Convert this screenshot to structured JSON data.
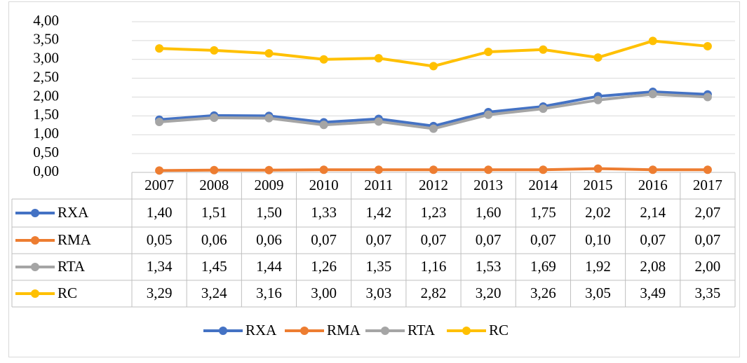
{
  "chart_data": {
    "type": "line",
    "categories": [
      "2007",
      "2008",
      "2009",
      "2010",
      "2011",
      "2012",
      "2013",
      "2014",
      "2015",
      "2016",
      "2017"
    ],
    "series": [
      {
        "name": "RXA",
        "color": "#4472c4",
        "values": [
          1.4,
          1.51,
          1.5,
          1.33,
          1.42,
          1.23,
          1.6,
          1.75,
          2.02,
          2.14,
          2.07
        ],
        "value_labels": [
          "1,40",
          "1,51",
          "1,50",
          "1,33",
          "1,42",
          "1,23",
          "1,60",
          "1,75",
          "2,02",
          "2,14",
          "2,07"
        ]
      },
      {
        "name": "RMA",
        "color": "#ed7d31",
        "values": [
          0.05,
          0.06,
          0.06,
          0.07,
          0.07,
          0.07,
          0.07,
          0.07,
          0.1,
          0.07,
          0.07
        ],
        "value_labels": [
          "0,05",
          "0,06",
          "0,06",
          "0,07",
          "0,07",
          "0,07",
          "0,07",
          "0,07",
          "0,10",
          "0,07",
          "0,07"
        ]
      },
      {
        "name": "RTA",
        "color": "#a5a5a5",
        "values": [
          1.34,
          1.45,
          1.44,
          1.26,
          1.35,
          1.16,
          1.53,
          1.69,
          1.92,
          2.08,
          2.0
        ],
        "value_labels": [
          "1,34",
          "1,45",
          "1,44",
          "1,26",
          "1,35",
          "1,16",
          "1,53",
          "1,69",
          "1,92",
          "2,08",
          "2,00"
        ]
      },
      {
        "name": "RC",
        "color": "#ffc000",
        "values": [
          3.29,
          3.24,
          3.16,
          3.0,
          3.03,
          2.82,
          3.2,
          3.26,
          3.05,
          3.49,
          3.35
        ],
        "value_labels": [
          "3,29",
          "3,24",
          "3,16",
          "3,00",
          "3,03",
          "2,82",
          "3,20",
          "3,26",
          "3,05",
          "3,49",
          "3,35"
        ]
      }
    ],
    "ylim": [
      0,
      4
    ],
    "yticks": [
      {
        "value": 0,
        "label": "0,00"
      },
      {
        "value": 0.5,
        "label": "0,50"
      },
      {
        "value": 1,
        "label": "1,00"
      },
      {
        "value": 1.5,
        "label": "1,50"
      },
      {
        "value": 2,
        "label": "2,00"
      },
      {
        "value": 2.5,
        "label": "2,50"
      },
      {
        "value": 3,
        "label": "3,00"
      },
      {
        "value": 3.5,
        "label": "3,50"
      },
      {
        "value": 4,
        "label": "4,00"
      }
    ],
    "grid": true,
    "legend": "bottom"
  }
}
